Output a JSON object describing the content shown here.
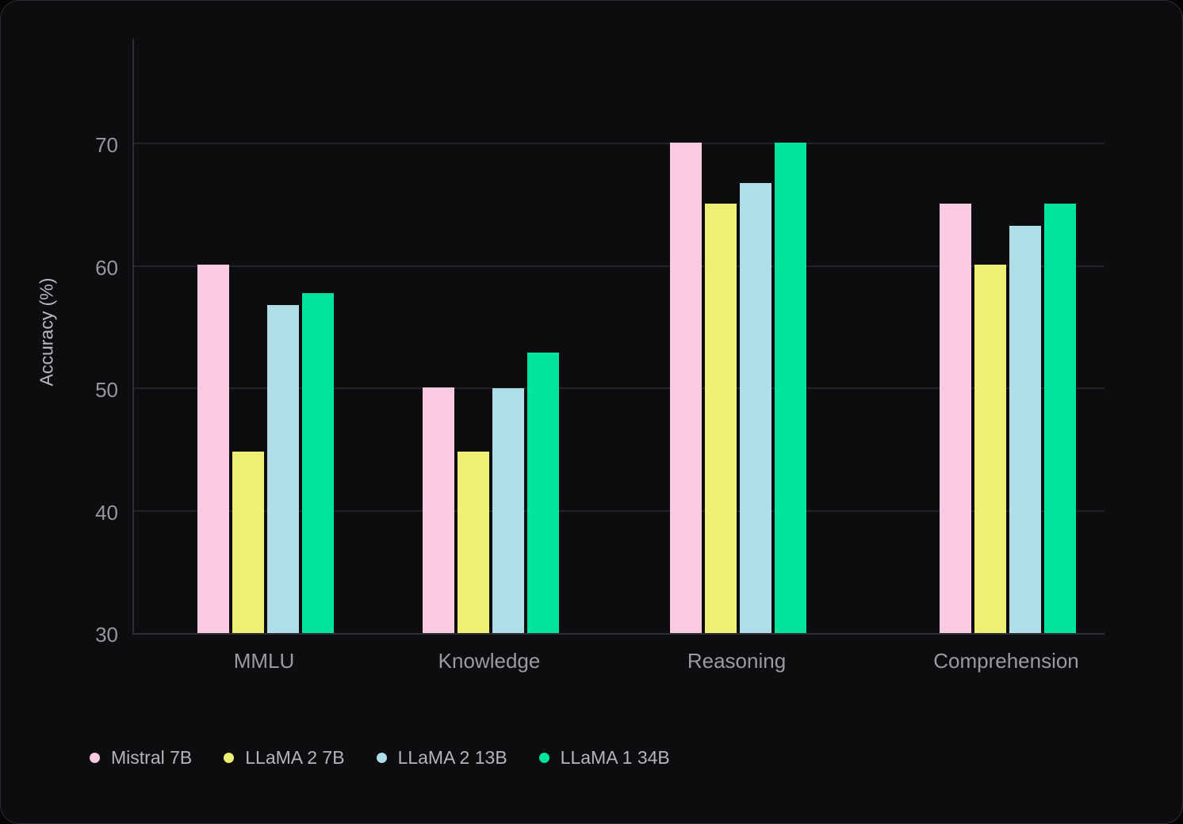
{
  "chart_data": {
    "type": "bar",
    "title": "",
    "xlabel": "",
    "ylabel": "Accuracy (%)",
    "categories": [
      "MMLU",
      "Knowledge",
      "Reasoning",
      "Comprehension"
    ],
    "series": [
      {
        "name": "Mistral 7B",
        "color": "#fcc9e3",
        "values": [
          60.1,
          50.1,
          70.1,
          65.1
        ]
      },
      {
        "name": "LLaMA 2 7B",
        "color": "#eef073",
        "values": [
          44.8,
          44.8,
          65.1,
          60.1
        ]
      },
      {
        "name": "LLaMA 2 13B",
        "color": "#aedfe9",
        "values": [
          56.8,
          50.0,
          66.8,
          63.3
        ]
      },
      {
        "name": "LLaMA 1 34B",
        "color": "#00e49d",
        "values": [
          57.8,
          52.9,
          70.1,
          65.1
        ]
      }
    ],
    "yticks": [
      30,
      40,
      50,
      60,
      70
    ],
    "ylim": [
      30,
      78.7
    ],
    "grid": true,
    "legend_position": "bottom-left",
    "colors": {
      "card_background": "#0d0d10",
      "card_border": "#2c2c32",
      "gridline": "#232327",
      "axis_line": "#2e2e34",
      "tick_text": "#96969e",
      "category_text": "#9a9aa2",
      "legend_text": "#b4b4bc",
      "axis_title_text": "#b9b9c1"
    }
  }
}
